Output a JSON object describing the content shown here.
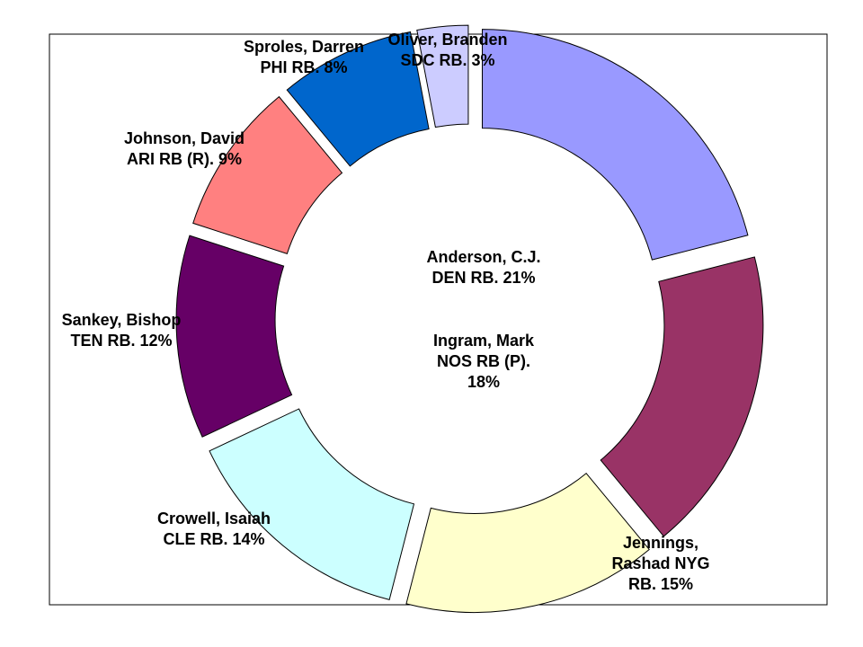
{
  "chart_data": {
    "type": "pie",
    "variant": "exploded-doughnut",
    "title": "",
    "legend": "none",
    "slices": [
      {
        "lines": [
          "Anderson, C.J.",
          "DEN RB. 21%"
        ],
        "value": 21,
        "color": "#9999ff"
      },
      {
        "lines": [
          "Ingram, Mark",
          "NOS RB (P).",
          "18%"
        ],
        "value": 18,
        "color": "#993366"
      },
      {
        "lines": [
          "Jennings,",
          "Rashad NYG",
          "RB. 15%"
        ],
        "value": 15,
        "color": "#ffffcc"
      },
      {
        "lines": [
          "Crowell, Isaiah",
          "CLE RB. 14%"
        ],
        "value": 14,
        "color": "#ccffff"
      },
      {
        "lines": [
          "Sankey, Bishop",
          "TEN RB. 12%"
        ],
        "value": 12,
        "color": "#660066"
      },
      {
        "lines": [
          "Johnson, David",
          "ARI RB (R). 9%"
        ],
        "value": 9,
        "color": "#ff8080"
      },
      {
        "lines": [
          "Sproles, Darren",
          "PHI RB. 8%"
        ],
        "value": 8,
        "color": "#0066cc"
      },
      {
        "lines": [
          "Oliver, Branden",
          "SDC RB. 3%"
        ],
        "value": 3,
        "color": "#ccccff"
      }
    ]
  }
}
